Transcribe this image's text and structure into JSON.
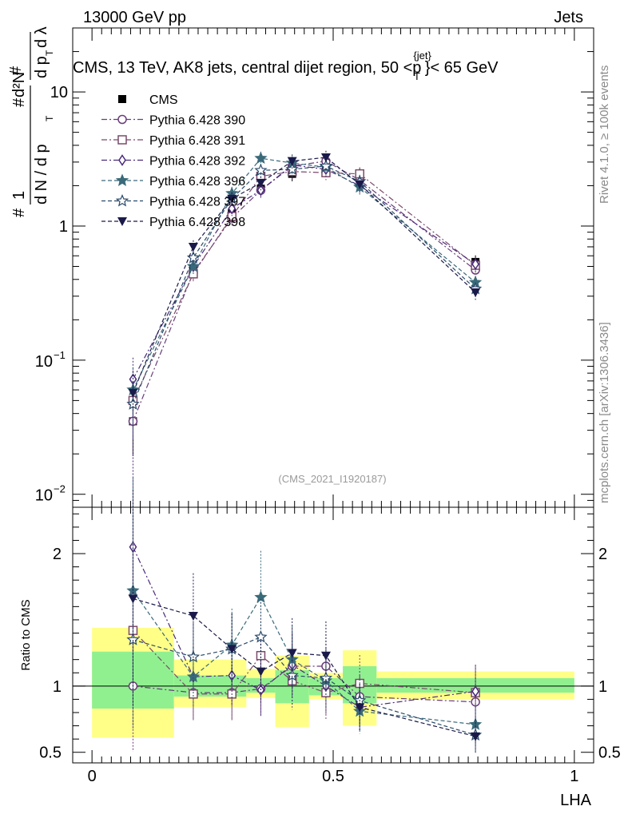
{
  "header": {
    "left": "13000 GeV pp",
    "right": "Jets"
  },
  "side_labels": {
    "rivet": "Rivet 4.1.0, ≥ 100k events",
    "mcplots": "mcplots.cern.ch [arXiv:1306.3436]"
  },
  "chart_data": [
    {
      "type": "scatter",
      "panel": "main",
      "title": "CMS, 13 TeV, AK8 jets, central dijet region, 50 <p_T^{jet}< 65 GeV",
      "title_main": "CMS, 13 TeV, AK8 jets, central dijet region, 50 <p",
      "title_sup": "{jet}",
      "title_sub": "T",
      "title_tail": "}< 65 GeV",
      "ylabel": "1/(dN/dp_T) d²N/(dp_T dλ)",
      "ylabel_parts": {
        "hash": "#",
        "one": "1",
        "dN": "d N / d p",
        "d2N": "d²N",
        "dpT": "d p",
        "dl": "d λ",
        "T": "T"
      },
      "yscale": "log",
      "ylim": [
        0.008,
        30
      ],
      "xlim": [
        -0.04,
        1.04
      ],
      "y_ticks": [
        {
          "value": 0.01,
          "base": "10",
          "exp": "−2"
        },
        {
          "value": 0.1,
          "base": "10",
          "exp": "−1"
        },
        {
          "value": 1,
          "label": "1"
        },
        {
          "value": 10,
          "label": "10"
        }
      ],
      "watermark": "(CMS_2021_I1920187)",
      "x": [
        0.085,
        0.21,
        0.29,
        0.35,
        0.415,
        0.485,
        0.555,
        0.795
      ],
      "series": [
        {
          "name": "CMS",
          "color": "#000000",
          "marker": "filled-square",
          "line": "none",
          "values": [
            0.035,
            0.47,
            1.25,
            1.9,
            2.45,
            2.65,
            2.4,
            0.54
          ]
        },
        {
          "name": "Pythia 6.428 390",
          "color": "#6a3d7a",
          "marker": "open-circle",
          "line": "dashdot",
          "values": [
            0.035,
            0.45,
            1.15,
            1.85,
            2.8,
            3.05,
            2.2,
            0.47
          ]
        },
        {
          "name": "Pythia 6.428 391",
          "color": "#7a4a6a",
          "marker": "open-square",
          "line": "dashdot",
          "values": [
            0.05,
            0.44,
            1.18,
            2.35,
            2.55,
            2.5,
            2.45,
            0.51
          ]
        },
        {
          "name": "Pythia 6.428 392",
          "color": "#4a2a7a",
          "marker": "open-diamond",
          "line": "dashdot",
          "values": [
            0.072,
            0.5,
            1.35,
            1.85,
            2.85,
            2.65,
            2.0,
            0.52
          ]
        },
        {
          "name": "Pythia 6.428 396",
          "color": "#3a6a7a",
          "marker": "star",
          "line": "dashed",
          "values": [
            0.06,
            0.5,
            1.75,
            3.2,
            2.95,
            2.75,
            1.95,
            0.38
          ]
        },
        {
          "name": "Pythia 6.428 397",
          "color": "#2a4a6a",
          "marker": "open-star",
          "line": "dashed",
          "values": [
            0.047,
            0.58,
            1.6,
            2.6,
            2.65,
            2.8,
            2.15,
            0.34
          ]
        },
        {
          "name": "Pythia 6.428 398",
          "color": "#1a1a4a",
          "marker": "filled-triangle-down",
          "line": "dashed",
          "values": [
            0.057,
            0.7,
            1.6,
            2.1,
            3.05,
            3.25,
            2.05,
            0.32
          ]
        }
      ]
    },
    {
      "type": "scatter",
      "panel": "ratio",
      "xlabel": "LHA",
      "ylabel": "Ratio to CMS",
      "xlim": [
        -0.04,
        1.04
      ],
      "ylim": [
        0.42,
        2.35
      ],
      "x_ticks": [
        0,
        0.5,
        1
      ],
      "x_tick_labels": [
        "0",
        "0.5",
        "1"
      ],
      "y_ticks": [
        0.5,
        1,
        2
      ],
      "y_tick_labels": [
        "0.5",
        "1",
        "2"
      ],
      "reference_line": 1,
      "uncertainty_bands": [
        {
          "x0": 0.0,
          "x1": 0.17,
          "inner": [
            0.83,
            1.26
          ],
          "outer": [
            0.61,
            1.44
          ]
        },
        {
          "x0": 0.17,
          "x1": 0.32,
          "inner": [
            0.92,
            1.08
          ],
          "outer": [
            0.84,
            1.2
          ]
        },
        {
          "x0": 0.32,
          "x1": 0.38,
          "inner": [
            0.95,
            1.06
          ],
          "outer": [
            0.91,
            1.13
          ]
        },
        {
          "x0": 0.38,
          "x1": 0.45,
          "inner": [
            0.87,
            1.12
          ],
          "outer": [
            0.69,
            1.23
          ]
        },
        {
          "x0": 0.45,
          "x1": 0.52,
          "inner": [
            0.93,
            1.06
          ],
          "outer": [
            0.9,
            1.1
          ]
        },
        {
          "x0": 0.52,
          "x1": 0.59,
          "inner": [
            0.87,
            1.15
          ],
          "outer": [
            0.7,
            1.27
          ]
        },
        {
          "x0": 0.59,
          "x1": 1.0,
          "inner": [
            0.95,
            1.06
          ],
          "outer": [
            0.9,
            1.11
          ]
        }
      ],
      "x": [
        0.085,
        0.21,
        0.29,
        0.35,
        0.415,
        0.485,
        0.555,
        0.795
      ],
      "series": [
        {
          "name": "Pythia 6.428 390",
          "color": "#6a3d7a",
          "marker": "open-circle",
          "line": "dashdot",
          "values": [
            1.0,
            0.95,
            0.95,
            0.98,
            1.15,
            1.15,
            0.92,
            0.88
          ]
        },
        {
          "name": "Pythia 6.428 391",
          "color": "#7a4a6a",
          "marker": "open-square",
          "line": "dashdot",
          "values": [
            1.42,
            0.94,
            0.94,
            1.23,
            1.04,
            0.95,
            1.02,
            0.95
          ]
        },
        {
          "name": "Pythia 6.428 392",
          "color": "#4a2a7a",
          "marker": "open-diamond",
          "line": "dashdot",
          "values": [
            2.05,
            1.07,
            1.08,
            0.97,
            1.16,
            1.0,
            0.84,
            0.96
          ]
        },
        {
          "name": "Pythia 6.428 396",
          "color": "#3a6a7a",
          "marker": "star",
          "line": "dashed",
          "values": [
            1.72,
            1.07,
            1.31,
            1.67,
            1.2,
            1.04,
            0.81,
            0.71
          ]
        },
        {
          "name": "Pythia 6.428 397",
          "color": "#2a4a6a",
          "marker": "open-star",
          "line": "dashed",
          "values": [
            1.35,
            1.22,
            1.28,
            1.37,
            1.08,
            1.06,
            0.89,
            0.63
          ]
        },
        {
          "name": "Pythia 6.428 398",
          "color": "#1a1a4a",
          "marker": "filled-triangle-down",
          "line": "dashed",
          "values": [
            1.66,
            1.53,
            1.28,
            1.11,
            1.25,
            1.23,
            0.84,
            0.62
          ]
        }
      ]
    }
  ]
}
